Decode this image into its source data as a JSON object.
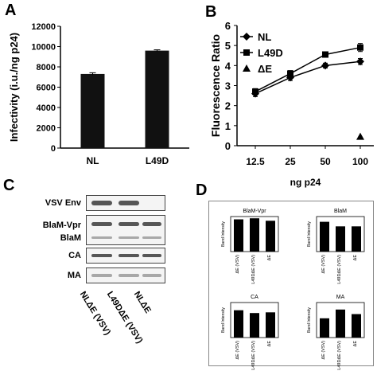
{
  "panels": {
    "A": {
      "letter": "A",
      "chart_data": {
        "type": "bar",
        "categories": [
          "NL",
          "L49D"
        ],
        "values": [
          7300,
          9600
        ],
        "errors": [
          120,
          80
        ],
        "ylabel": "Infectivity (i.u./ng p24)",
        "ylim": [
          0,
          12000
        ],
        "yticks": [
          "0",
          "2000",
          "4000",
          "6000",
          "8000",
          "10000",
          "12000"
        ],
        "color": "#111111"
      }
    },
    "B": {
      "letter": "B",
      "chart_data": {
        "type": "line",
        "x": [
          "12.5",
          "25",
          "50",
          "100"
        ],
        "xlabel": "ng p24",
        "ylabel": "Fluorescence Ratio",
        "ylim": [
          0,
          6
        ],
        "yticks": [
          "0",
          "1",
          "2",
          "3",
          "4",
          "5",
          "6"
        ],
        "legend_position": "top-left",
        "series": [
          {
            "name": "NL",
            "marker": "diamond",
            "values": [
              2.6,
              3.4,
              4.0,
              4.2
            ],
            "errors": [
              0.15,
              0.15,
              0.12,
              0.15
            ]
          },
          {
            "name": "L49D",
            "marker": "square",
            "values": [
              2.7,
              3.6,
              4.55,
              4.9
            ],
            "errors": [
              0.15,
              0.15,
              0.12,
              0.2
            ]
          },
          {
            "name": "ΔE",
            "marker": "triangle",
            "values": [
              null,
              null,
              null,
              0.45
            ],
            "errors": [
              null,
              null,
              null,
              0
            ]
          }
        ]
      }
    },
    "C": {
      "letter": "C",
      "rows": [
        {
          "label": "VSV Env"
        },
        {
          "label": "BlaM-Vpr"
        },
        {
          "label": "BlaM"
        },
        {
          "label": "CA"
        },
        {
          "label": "MA"
        }
      ],
      "lanes": [
        "NLΔE (VSV)",
        "L49DΔE (VSV)",
        "NLΔE"
      ]
    },
    "D": {
      "letter": "D",
      "chart_data": [
        {
          "type": "bar",
          "title": "BlaM-Vpr",
          "ylabel": "Band Intensity",
          "categories": [
            "ΔE (VSV)",
            "L49DΔE (VSV)",
            "ΔE"
          ],
          "values": [
            0.92,
            0.95,
            0.88
          ],
          "ylim": [
            0,
            1
          ]
        },
        {
          "type": "bar",
          "title": "BlaM",
          "ylabel": "Band Intensity",
          "categories": [
            "ΔE (VSV)",
            "L49DΔE (VSV)",
            "ΔE"
          ],
          "values": [
            0.85,
            0.72,
            0.72
          ],
          "ylim": [
            0,
            1
          ]
        },
        {
          "type": "bar",
          "title": "CA",
          "ylabel": "Band Intensity",
          "categories": [
            "ΔE (VSV)",
            "L49DΔE (VSV)",
            "ΔE"
          ],
          "values": [
            0.78,
            0.7,
            0.72
          ],
          "ylim": [
            0,
            1
          ]
        },
        {
          "type": "bar",
          "title": "MA",
          "ylabel": "Band Intensity",
          "categories": [
            "ΔE (VSV)",
            "L49DΔE (VSV)",
            "ΔE"
          ],
          "values": [
            0.55,
            0.8,
            0.67
          ],
          "ylim": [
            0,
            1
          ]
        }
      ]
    }
  }
}
